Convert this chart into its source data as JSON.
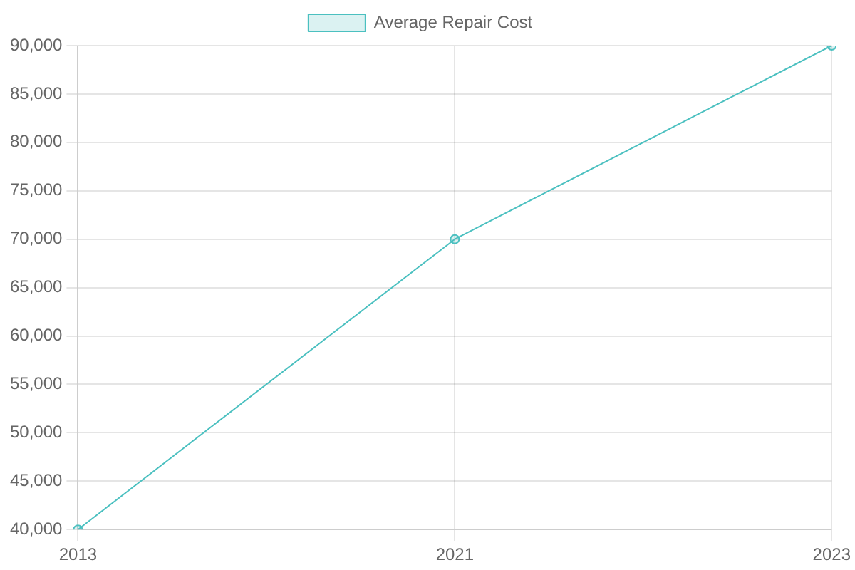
{
  "chart_data": {
    "type": "line",
    "categories": [
      "2013",
      "2021",
      "2023"
    ],
    "series": [
      {
        "name": "Average Repair Cost",
        "color": "#4bc0c0",
        "values": [
          40000,
          70000,
          90000
        ]
      }
    ],
    "ylim": [
      40000,
      90000
    ],
    "yticks": [
      {
        "value": 40000,
        "label": "40,000"
      },
      {
        "value": 45000,
        "label": "45,000"
      },
      {
        "value": 50000,
        "label": "50,000"
      },
      {
        "value": 55000,
        "label": "55,000"
      },
      {
        "value": 60000,
        "label": "60,000"
      },
      {
        "value": 65000,
        "label": "65,000"
      },
      {
        "value": 70000,
        "label": "70,000"
      },
      {
        "value": 75000,
        "label": "75,000"
      },
      {
        "value": 80000,
        "label": "80,000"
      },
      {
        "value": 85000,
        "label": "85,000"
      },
      {
        "value": 90000,
        "label": "90,000"
      }
    ],
    "grid": true,
    "legend": "top",
    "marker": "circle",
    "line_style": "solid"
  }
}
